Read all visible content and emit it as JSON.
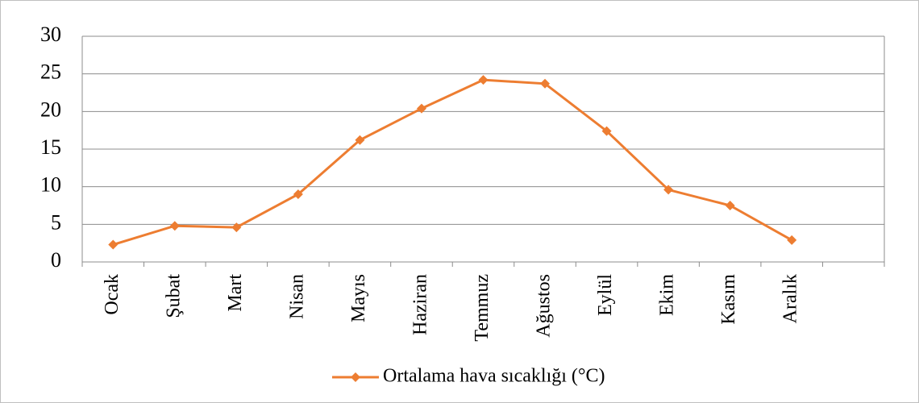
{
  "chart_data": {
    "type": "line",
    "categories": [
      "Ocak",
      "Şubat",
      "Mart",
      "Nisan",
      "Mayıs",
      "Haziran",
      "Temmuz",
      "Ağustos",
      "Eylül",
      "Ekim",
      "Kasım",
      "Aralık",
      null
    ],
    "series": [
      {
        "name": "Ortalama hava sıcaklığı (°C)",
        "color": "#ed7d31",
        "values": [
          2.3,
          4.8,
          4.6,
          9.0,
          16.2,
          20.4,
          24.2,
          23.7,
          17.4,
          9.6,
          7.5,
          2.9,
          null
        ]
      }
    ],
    "ylim": [
      0,
      30
    ],
    "yticks": [
      0,
      5,
      10,
      15,
      20,
      25,
      30
    ],
    "grid": true,
    "legend": "bottom"
  }
}
